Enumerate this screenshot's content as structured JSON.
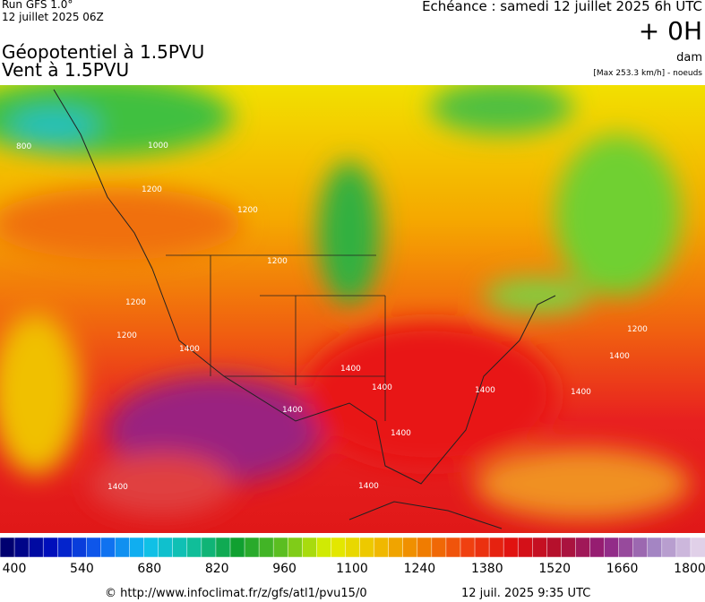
{
  "header": {
    "run": "Run GFS 1.0°",
    "run_date": "12 juillet 2025 06Z",
    "echeance": "Echéance : samedi 12 juillet 2025 6h UTC",
    "lead": "+ 0H",
    "unit": "dam",
    "max_note": "[Max 253.3 km/h] - noeuds",
    "title_1": "Géopotentiel à 1.5PVU",
    "title_2": "Vent à 1.5PVU"
  },
  "map": {
    "contour_labels": [
      "800",
      "1000",
      "1200",
      "1200",
      "1200",
      "1200",
      "1200",
      "1400",
      "1400",
      "1400",
      "1400",
      "1400",
      "1400",
      "1400",
      "1400",
      "1400",
      "1200",
      "1400"
    ]
  },
  "colorbar": {
    "labels": [
      400,
      540,
      680,
      820,
      960,
      1100,
      1240,
      1380,
      1520,
      1660,
      1800
    ]
  },
  "footer": {
    "source": "© http://www.infoclimat.fr/z/gfs/atl1/pvu15/0",
    "timestamp": "12 juil. 2025  9:35 UTC"
  }
}
